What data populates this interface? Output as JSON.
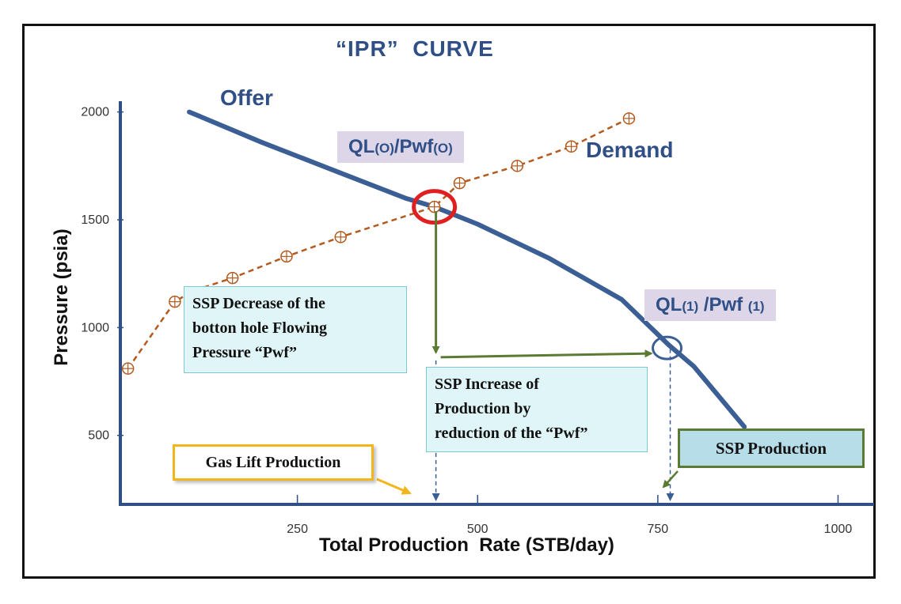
{
  "chart_data": {
    "type": "line",
    "title": "“IPR”  CURVE",
    "xlabel": "Total Production  Rate (STB/day)",
    "ylabel": "Pressure (psia)",
    "xlim": [
      0,
      1050
    ],
    "ylim": [
      180,
      2050
    ],
    "x_ticks": [
      250,
      500,
      750,
      1000
    ],
    "y_ticks": [
      500,
      1000,
      1500,
      2000
    ],
    "grid": false,
    "series": [
      {
        "name": "Offer",
        "color": "#3b5f95",
        "style": "solid",
        "x": [
          100,
          200,
          300,
          400,
          440,
          500,
          600,
          700,
          765,
          800,
          830,
          870
        ],
        "y": [
          2000,
          1860,
          1730,
          1600,
          1560,
          1480,
          1320,
          1130,
          920,
          820,
          700,
          540
        ]
      },
      {
        "name": "Demand",
        "color": "#b35a1f",
        "style": "dashed",
        "x": [
          15,
          80,
          105,
          160,
          235,
          310,
          440,
          475,
          555,
          630,
          710
        ],
        "y": [
          810,
          1120,
          1170,
          1230,
          1330,
          1420,
          1560,
          1670,
          1750,
          1840,
          1970
        ]
      }
    ],
    "annotations": {
      "ql0": {
        "main": "QL",
        "sub": "(O)",
        "main2": "/Pwf",
        "sub2": "(O)"
      },
      "ql1": {
        "main": "QL",
        "sub": "(1)",
        "main2": " /Pwf ",
        "sub2": "(1)"
      },
      "note_decrease": [
        "SSP Decrease of the",
        "botton hole  Flowing",
        "Pressure “Pwf”"
      ],
      "note_increase": [
        "SSP Increase of",
        "Production by",
        "reduction of the “Pwf”"
      ],
      "gas_lift": "Gas Lift Production",
      "ssp_production": "SSP Production"
    },
    "colors": {
      "offer": "#3b5f95",
      "demand": "#b35a1f",
      "operating_point_circle": "#e02020",
      "new_point_circle": "#3b5f95",
      "arrow_green": "#5b7a32",
      "gas_lift_arrow": "#f2b51c"
    }
  }
}
